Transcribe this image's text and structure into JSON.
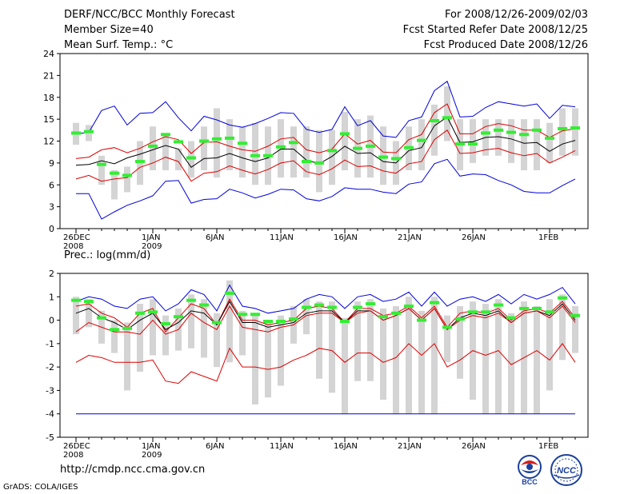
{
  "header": {
    "title": "DERF/NCC/BCC Monthly Forecast",
    "member_size": "Member Size=40",
    "variable": "Mean Surf. Temp.: °C",
    "period": "For 2008/12/26-2009/02/03",
    "start_date": "Fcst Started Refer Date 2008/12/25",
    "produced_date": "Fcst Produced Date 2008/12/26"
  },
  "footer": {
    "url": "http://cmdp.ncc.cma.gov.cn",
    "grads": "GrADS: COLA/IGES",
    "logo_bcc": "BCC",
    "logo_ncc": "NCC"
  },
  "colors": {
    "envelope": "#0000dd",
    "spread": "#dd0000",
    "mean": "#000000",
    "obs": "#33ee33",
    "box": "#d4d4d4"
  },
  "chart_data": [
    {
      "type": "line",
      "title": "Mean Surf. Temp.: °C",
      "ylim": [
        0,
        24
      ],
      "yticks": [
        0,
        3,
        6,
        9,
        12,
        15,
        18,
        21,
        24
      ],
      "xticks": [
        {
          "day": 0,
          "label": "26DEC",
          "label2": "2008"
        },
        {
          "day": 6,
          "label": "1JAN",
          "label2": "2009"
        },
        {
          "day": 11,
          "label": "6JAN",
          "label2": ""
        },
        {
          "day": 16,
          "label": "11JAN",
          "label2": ""
        },
        {
          "day": 21,
          "label": "16JAN",
          "label2": ""
        },
        {
          "day": 26,
          "label": "21JAN",
          "label2": ""
        },
        {
          "day": 31,
          "label": "26JAN",
          "label2": ""
        },
        {
          "day": 37,
          "label": "1FEB",
          "label2": ""
        }
      ],
      "series": [
        {
          "name": "max",
          "color": "envelope",
          "values": [
            13,
            13.2,
            16.2,
            16.8,
            14.2,
            15.8,
            15.9,
            17.4,
            15.2,
            13.4,
            15.4,
            14.9,
            14.2,
            13.9,
            14.4,
            15.1,
            15.9,
            15.8,
            13.6,
            13.2,
            13.6,
            16.7,
            14.1,
            14.8,
            12.7,
            12.5,
            14.8,
            15.3,
            18.9,
            20.2,
            15.3,
            15.4,
            16.6,
            17.4,
            17.1,
            16.8,
            17.1,
            15.1,
            16.9,
            16.7
          ]
        },
        {
          "name": "upper",
          "color": "spread",
          "values": [
            9.6,
            9.8,
            10.8,
            11.1,
            10.4,
            11.0,
            11.9,
            12.6,
            12.2,
            10.3,
            11.8,
            11.9,
            11.3,
            10.8,
            10.6,
            11.3,
            12.3,
            12.5,
            10.8,
            10.4,
            10.9,
            13.0,
            11.6,
            12.1,
            10.5,
            10.4,
            12.2,
            12.9,
            15.9,
            17.1,
            13.0,
            13.0,
            14.0,
            14.4,
            14.1,
            13.5,
            13.5,
            12.5,
            13.4,
            13.7
          ]
        },
        {
          "name": "mean",
          "color": "mean",
          "values": [
            8.7,
            8.8,
            9.3,
            8.9,
            9.7,
            10.2,
            10.8,
            11.4,
            10.9,
            8.4,
            9.6,
            9.7,
            10.3,
            9.7,
            9.2,
            9.7,
            10.9,
            10.9,
            9.4,
            8.9,
            9.9,
            11.3,
            10.3,
            10.4,
            9.2,
            9.0,
            10.7,
            11.1,
            14.1,
            15.3,
            11.8,
            11.9,
            12.5,
            12.6,
            12.3,
            11.7,
            11.8,
            10.6,
            11.6,
            12.1
          ]
        },
        {
          "name": "lower",
          "color": "spread",
          "values": [
            6.8,
            7.3,
            6.5,
            6.8,
            7.0,
            8.4,
            9.0,
            9.8,
            9.2,
            6.5,
            7.6,
            7.8,
            8.6,
            8.0,
            7.5,
            8.1,
            9.0,
            9.3,
            7.8,
            7.4,
            8.2,
            9.4,
            8.5,
            8.6,
            7.9,
            7.6,
            8.9,
            9.2,
            12.2,
            13.5,
            10.3,
            10.4,
            10.8,
            11.0,
            10.4,
            10.0,
            10.3,
            9.0,
            9.8,
            10.7
          ]
        },
        {
          "name": "min",
          "color": "envelope",
          "values": [
            4.8,
            4.8,
            1.3,
            2.3,
            3.2,
            3.8,
            4.5,
            6.5,
            6.6,
            3.5,
            4.0,
            4.1,
            5.4,
            4.9,
            4.2,
            4.7,
            5.4,
            5.3,
            4.1,
            3.8,
            4.4,
            5.6,
            5.4,
            5.4,
            5.0,
            4.8,
            6.1,
            6.4,
            8.9,
            9.5,
            7.2,
            7.5,
            7.4,
            6.6,
            6.0,
            5.1,
            4.9,
            4.9,
            5.9,
            6.8
          ]
        }
      ],
      "boxes": [
        [
          11.5,
          14.5
        ],
        [
          12,
          14.2
        ],
        [
          6,
          10
        ],
        [
          4,
          8
        ],
        [
          5,
          8.5
        ],
        [
          6,
          12
        ],
        [
          8,
          14
        ],
        [
          8,
          13
        ],
        [
          8,
          11
        ],
        [
          7,
          12
        ],
        [
          8,
          14
        ],
        [
          7,
          16.5
        ],
        [
          8,
          15
        ],
        [
          7,
          14
        ],
        [
          6,
          14.5
        ],
        [
          6,
          14
        ],
        [
          7,
          15
        ],
        [
          7,
          14
        ],
        [
          7,
          14
        ],
        [
          5,
          13.5
        ],
        [
          6,
          13.5
        ],
        [
          8,
          16
        ],
        [
          7,
          15
        ],
        [
          7,
          15.5
        ],
        [
          6,
          14
        ],
        [
          6,
          12
        ],
        [
          8,
          14
        ],
        [
          8,
          15
        ],
        [
          10,
          17
        ],
        [
          12,
          19.5
        ],
        [
          8,
          15
        ],
        [
          9,
          15
        ],
        [
          10,
          15
        ],
        [
          10,
          15
        ],
        [
          9,
          15
        ],
        [
          8,
          15
        ],
        [
          8,
          15
        ],
        [
          9,
          14.5
        ],
        [
          10,
          16.5
        ],
        [
          10,
          16.5
        ]
      ],
      "obs": [
        13.1,
        13.3,
        8.8,
        7.6,
        7.3,
        9.2,
        11.3,
        12.9,
        11.9,
        9.7,
        12.0,
        12.3,
        12.4,
        11.7,
        10.0,
        10.0,
        11.2,
        11.8,
        9.2,
        9.0,
        10.7,
        13.0,
        11.0,
        11.3,
        9.8,
        9.6,
        11.1,
        12.1,
        14.8,
        15.2,
        11.6,
        11.6,
        13.1,
        13.5,
        13.2,
        12.9,
        13.5,
        12.4,
        13.7,
        13.8
      ]
    },
    {
      "type": "line",
      "title": "Prec.: log(mm/d)",
      "ylim": [
        -5,
        2
      ],
      "yticks": [
        -5,
        -4,
        -3,
        -2,
        -1,
        0,
        1,
        2
      ],
      "xticks": [
        {
          "day": 0,
          "label": "26DEC",
          "label2": "2008"
        },
        {
          "day": 6,
          "label": "1JAN",
          "label2": "2009"
        },
        {
          "day": 11,
          "label": "6JAN",
          "label2": ""
        },
        {
          "day": 16,
          "label": "11JAN",
          "label2": ""
        },
        {
          "day": 21,
          "label": "16JAN",
          "label2": ""
        },
        {
          "day": 26,
          "label": "21JAN",
          "label2": ""
        },
        {
          "day": 31,
          "label": "26JAN",
          "label2": ""
        },
        {
          "day": 37,
          "label": "1FEB",
          "label2": ""
        }
      ],
      "series": [
        {
          "name": "max",
          "color": "envelope",
          "values": [
            0.8,
            1.0,
            0.9,
            0.6,
            0.5,
            0.9,
            1.0,
            0.4,
            0.7,
            1.3,
            1.1,
            0.4,
            1.5,
            0.6,
            0.5,
            0.3,
            0.4,
            0.5,
            0.9,
            1.1,
            1.0,
            0.5,
            1.0,
            1.1,
            0.8,
            0.9,
            1.2,
            0.6,
            1.2,
            0.6,
            0.9,
            1.0,
            0.8,
            1.1,
            0.7,
            1.1,
            0.9,
            1.1,
            1.4,
            0.7
          ]
        },
        {
          "name": "upper",
          "color": "spread",
          "values": [
            0.6,
            0.7,
            0.3,
            0.1,
            -0.3,
            0.3,
            0.5,
            -0.5,
            0.1,
            0.7,
            0.5,
            -0.2,
            0.9,
            0.0,
            0.0,
            -0.2,
            -0.1,
            0.0,
            0.5,
            0.6,
            0.5,
            -0.1,
            0.5,
            0.5,
            0.2,
            0.3,
            0.6,
            0.1,
            0.6,
            -0.3,
            0.3,
            0.4,
            0.3,
            0.5,
            0.0,
            0.4,
            0.5,
            0.3,
            0.8,
            0.1
          ]
        },
        {
          "name": "mean",
          "color": "mean",
          "values": [
            0.3,
            0.5,
            0.1,
            -0.1,
            -0.4,
            0.0,
            0.3,
            -0.4,
            -0.1,
            0.4,
            0.3,
            -0.2,
            0.8,
            -0.1,
            -0.1,
            -0.3,
            -0.2,
            -0.1,
            0.3,
            0.4,
            0.4,
            -0.1,
            0.4,
            0.4,
            0.0,
            0.2,
            0.5,
            0.0,
            0.5,
            -0.4,
            0.1,
            0.3,
            0.2,
            0.4,
            -0.1,
            0.3,
            0.4,
            0.2,
            0.7,
            0.0
          ]
        },
        {
          "name": "lower",
          "color": "spread",
          "values": [
            -0.5,
            -0.1,
            -0.3,
            -0.5,
            -0.5,
            -0.6,
            0.0,
            -0.6,
            -0.4,
            0.3,
            -0.1,
            -0.4,
            0.6,
            -0.3,
            -0.4,
            -0.5,
            -0.3,
            -0.2,
            0.2,
            0.3,
            0.3,
            -0.1,
            0.3,
            0.4,
            0.0,
            0.2,
            0.5,
            0.0,
            0.5,
            -0.4,
            0.0,
            0.2,
            0.1,
            0.3,
            -0.1,
            0.3,
            0.4,
            0.1,
            0.6,
            -0.1
          ]
        },
        {
          "name": "min",
          "color": "spread",
          "values": [
            -1.8,
            -1.5,
            -1.6,
            -1.8,
            -1.8,
            -1.8,
            -1.7,
            -2.6,
            -2.7,
            -2.2,
            -2.4,
            -2.6,
            -1.2,
            -2.0,
            -2.0,
            -2.1,
            -2.0,
            -1.7,
            -1.5,
            -1.2,
            -1.3,
            -1.8,
            -1.4,
            -1.4,
            -1.8,
            -1.6,
            -1.0,
            -1.5,
            -1.0,
            -2.0,
            -1.7,
            -1.3,
            -1.5,
            -1.3,
            -1.9,
            -1.6,
            -1.3,
            -1.7,
            -1.0,
            -1.8
          ]
        },
        {
          "name": "floor",
          "color": "envelope",
          "values": [
            -4,
            -4,
            -4,
            -4,
            -4,
            -4,
            -4,
            -4,
            -4,
            -4,
            -4,
            -4,
            -4,
            -4,
            -4,
            -4,
            -4,
            -4,
            -4,
            -4,
            -4,
            -4,
            -4,
            -4,
            -4,
            -4,
            -4,
            -4,
            -4,
            -4,
            -4,
            -4,
            -4,
            -4,
            -4,
            -4,
            -4,
            -4,
            -4,
            -4
          ]
        }
      ],
      "boxes": [
        [
          -0.6,
          1.0
        ],
        [
          -0.3,
          0.9
        ],
        [
          -1.0,
          0.4
        ],
        [
          -1.4,
          0.0
        ],
        [
          -3.0,
          -0.1
        ],
        [
          -2.2,
          0.7
        ],
        [
          -1.5,
          0.9
        ],
        [
          -1.5,
          0.2
        ],
        [
          -1.3,
          0.5
        ],
        [
          -1.2,
          1.1
        ],
        [
          -1.6,
          0.9
        ],
        [
          -2.0,
          0.3
        ],
        [
          -1.8,
          1.7
        ],
        [
          -1.5,
          0.4
        ],
        [
          -3.6,
          0.3
        ],
        [
          -3.3,
          0.0
        ],
        [
          -2.8,
          0.2
        ],
        [
          -1.0,
          0.6
        ],
        [
          -0.6,
          0.9
        ],
        [
          -2.5,
          0.8
        ],
        [
          -3.1,
          0.8
        ],
        [
          -4.0,
          0.1
        ],
        [
          -2.6,
          0.8
        ],
        [
          -2.6,
          0.9
        ],
        [
          -3.4,
          0.5
        ],
        [
          -4.0,
          0.6
        ],
        [
          -4.0,
          1.0
        ],
        [
          -4.0,
          0.4
        ],
        [
          -4.0,
          1.0
        ],
        [
          -1.8,
          0.2
        ],
        [
          -2.5,
          0.6
        ],
        [
          -3.4,
          0.8
        ],
        [
          -4.0,
          0.7
        ],
        [
          -4.0,
          0.9
        ],
        [
          -4.0,
          0.3
        ],
        [
          -4.0,
          0.8
        ],
        [
          -4.0,
          0.6
        ],
        [
          -3.0,
          0.9
        ],
        [
          -1.7,
          1.1
        ],
        [
          -1.4,
          0.6
        ]
      ],
      "obs": [
        0.85,
        0.8,
        0.1,
        -0.4,
        -0.35,
        0.3,
        0.35,
        -0.15,
        0.15,
        0.85,
        0.65,
        -0.1,
        1.15,
        0.25,
        0.25,
        -0.05,
        -0.05,
        0.05,
        0.55,
        0.65,
        0.55,
        -0.05,
        0.55,
        0.7,
        0.15,
        0.3,
        0.6,
        0.0,
        0.75,
        -0.3,
        0.05,
        0.35,
        0.35,
        0.65,
        0.1,
        0.5,
        0.5,
        0.35,
        0.95,
        0.2
      ]
    }
  ]
}
